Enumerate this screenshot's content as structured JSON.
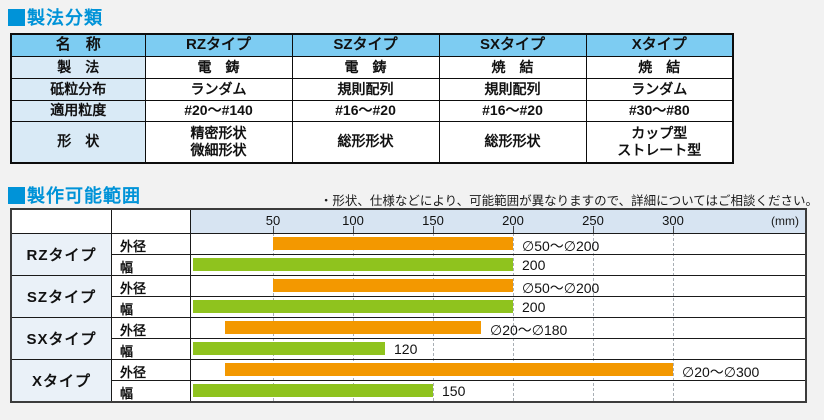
{
  "colors": {
    "accent_blue": "#0093D8",
    "table_header_bg": "#7DCCF2",
    "table_label_bg": "#D9EAF6",
    "chart_axis_bg": "#D7E4F2",
    "chart_type_bg": "#EAF1F8",
    "bar_diameter": "#F39800",
    "bar_width": "#8FC31E",
    "page_bg": "#F2F2F2"
  },
  "section1": {
    "title": "製法分類"
  },
  "table1": {
    "header": [
      "名　称",
      "RZタイプ",
      "SZタイプ",
      "SXタイプ",
      "Xタイプ"
    ],
    "rows": [
      {
        "label": "製　法",
        "cells": [
          "電　鋳",
          "電　鋳",
          "焼　結",
          "焼　結"
        ]
      },
      {
        "label": "砥粒分布",
        "cells": [
          "ランダム",
          "規則配列",
          "規則配列",
          "ランダム"
        ]
      },
      {
        "label": "適用粒度",
        "cells": [
          "#20～#140",
          "#16～#20",
          "#16～#20",
          "#30～#80"
        ]
      },
      {
        "label": "形　状",
        "cells": [
          "精密形状\n微細形状",
          "総形形状",
          "総形形状",
          "カップ型\nストレート型"
        ]
      }
    ]
  },
  "section2": {
    "title": "製作可能範囲",
    "note": "・形状、仕様などにより、可能範囲が異なりますので、詳細についてはご相談ください。"
  },
  "chart_data": {
    "type": "bar",
    "orientation": "horizontal-range",
    "unit": "(mm)",
    "xlim": [
      0,
      380
    ],
    "axis_ticks": [
      50,
      100,
      150,
      200,
      250,
      300
    ],
    "grid": "dashed-vertical",
    "colors": {
      "diameter": "#F39800",
      "width": "#8FC31E"
    },
    "row_labels": {
      "diameter": "外径",
      "width": "幅"
    },
    "groups": [
      {
        "name": "RZタイプ",
        "bars": [
          {
            "label": "外径",
            "kind": "diameter",
            "start": 50,
            "end": 200,
            "value_label": "∅50～∅200"
          },
          {
            "label": "幅",
            "kind": "width",
            "start": 0,
            "end": 200,
            "value_label": "200"
          }
        ]
      },
      {
        "name": "SZタイプ",
        "bars": [
          {
            "label": "外径",
            "kind": "diameter",
            "start": 50,
            "end": 200,
            "value_label": "∅50～∅200"
          },
          {
            "label": "幅",
            "kind": "width",
            "start": 0,
            "end": 200,
            "value_label": "200"
          }
        ]
      },
      {
        "name": "SXタイプ",
        "bars": [
          {
            "label": "外径",
            "kind": "diameter",
            "start": 20,
            "end": 180,
            "value_label": "∅20～∅180"
          },
          {
            "label": "幅",
            "kind": "width",
            "start": 0,
            "end": 120,
            "value_label": "120"
          }
        ]
      },
      {
        "name": "Xタイプ",
        "bars": [
          {
            "label": "外径",
            "kind": "diameter",
            "start": 20,
            "end": 300,
            "value_label": "∅20～∅300"
          },
          {
            "label": "幅",
            "kind": "width",
            "start": 0,
            "end": 150,
            "value_label": "150"
          }
        ]
      }
    ]
  }
}
